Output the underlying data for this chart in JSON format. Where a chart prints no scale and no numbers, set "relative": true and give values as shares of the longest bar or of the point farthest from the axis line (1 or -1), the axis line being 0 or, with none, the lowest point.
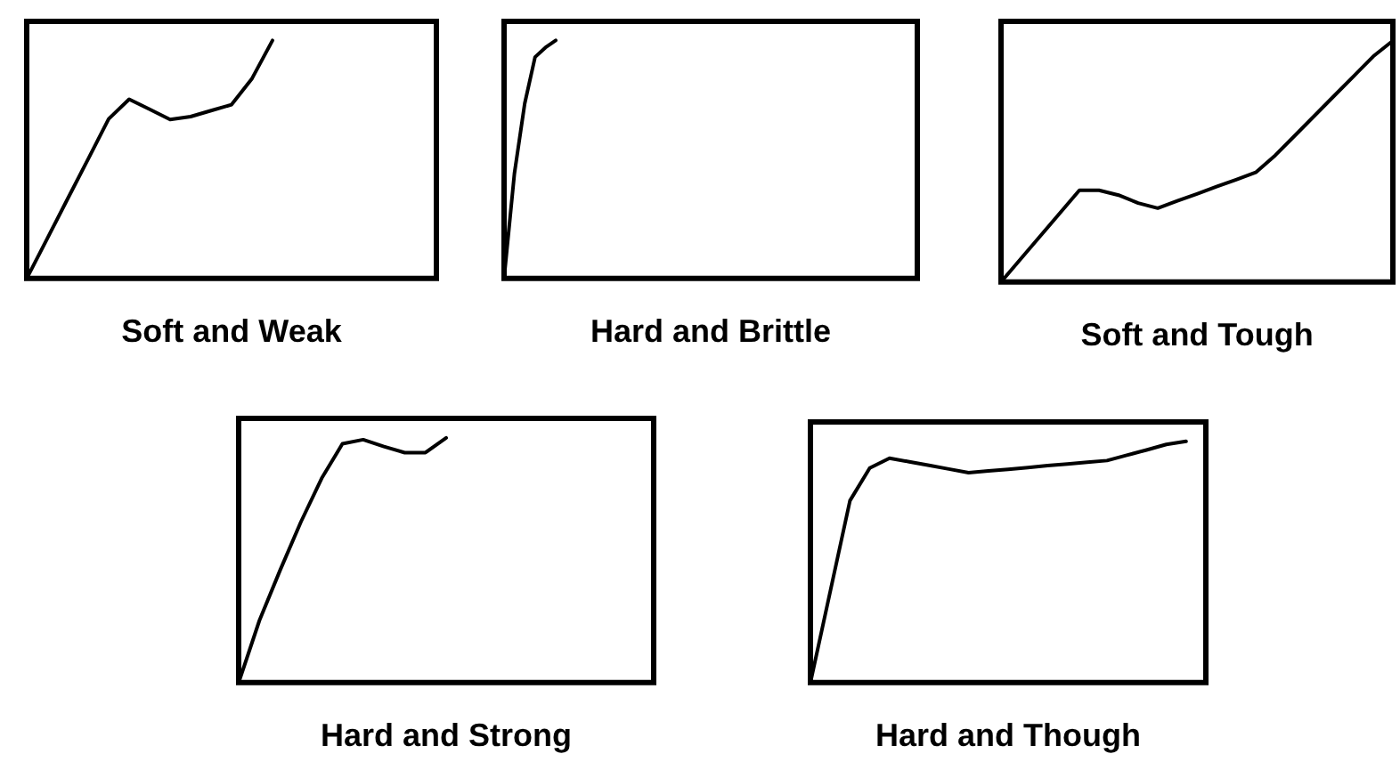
{
  "chart_data": [
    {
      "type": "line",
      "xlabel": "Soft and Weak",
      "relative": true,
      "categories": [
        null,
        null,
        null,
        null,
        null,
        null,
        null,
        null,
        null,
        null,
        null,
        null,
        null,
        null,
        null,
        null,
        null,
        null,
        null,
        null,
        null
      ],
      "series": [
        {
          "color": "#000000",
          "values": [
            0,
            0.167,
            0.335,
            0.502,
            0.67,
            0.753,
            0.711,
            0.668,
            0.68,
            0.705,
            0.73,
            0.84,
            1,
            null,
            null,
            null,
            null,
            null,
            null,
            null,
            null
          ]
        }
      ]
    },
    {
      "type": "line",
      "xlabel": "Hard and Brittle",
      "relative": true,
      "categories": [
        null,
        null,
        null,
        null,
        null,
        null,
        null,
        null,
        null,
        null,
        null,
        null,
        null,
        null,
        null,
        null,
        null,
        null,
        null,
        null,
        null,
        null,
        null,
        null,
        null,
        null,
        null,
        null,
        null,
        null,
        null,
        null,
        null,
        null,
        null,
        null,
        null,
        null,
        null,
        null,
        null
      ],
      "series": [
        {
          "color": "#000000",
          "values": [
            0,
            0.44,
            0.735,
            0.93,
            0.97,
            1,
            null,
            null,
            null,
            null,
            null,
            null,
            null,
            null,
            null,
            null,
            null,
            null,
            null,
            null,
            null,
            null,
            null,
            null,
            null,
            null,
            null,
            null,
            null,
            null,
            null,
            null,
            null,
            null,
            null,
            null,
            null,
            null,
            null,
            null,
            null
          ]
        }
      ]
    },
    {
      "type": "line",
      "xlabel": "Soft and Tough",
      "relative": true,
      "categories": [
        null,
        null,
        null,
        null,
        null,
        null,
        null,
        null,
        null,
        null,
        null,
        null,
        null,
        null,
        null,
        null,
        null,
        null,
        null,
        null,
        null
      ],
      "series": [
        {
          "color": "#000000",
          "values": [
            0,
            0.095,
            0.19,
            0.285,
            0.38,
            0.38,
            0.36,
            0.327,
            0.306,
            0.336,
            0.365,
            0.395,
            0.424,
            0.454,
            0.525,
            0.607,
            0.689,
            0.771,
            0.853,
            0.935,
            1
          ]
        }
      ]
    },
    {
      "type": "line",
      "xlabel": "Hard and Strong",
      "relative": true,
      "categories": [
        null,
        null,
        null,
        null,
        null,
        null,
        null,
        null,
        null,
        null,
        null,
        null,
        null,
        null,
        null,
        null,
        null,
        null,
        null,
        null,
        null
      ],
      "series": [
        {
          "color": "#000000",
          "values": [
            0,
            0.254,
            0.46,
            0.657,
            0.835,
            0.976,
            0.993,
            0.965,
            0.94,
            0.94,
            1,
            null,
            null,
            null,
            null,
            null,
            null,
            null,
            null,
            null,
            null
          ]
        }
      ]
    },
    {
      "type": "line",
      "xlabel": "Hard and Though",
      "relative": true,
      "categories": [
        null,
        null,
        null,
        null,
        null,
        null,
        null,
        null,
        null,
        null,
        null,
        null,
        null,
        null,
        null,
        null,
        null,
        null,
        null,
        null,
        null
      ],
      "series": [
        {
          "color": "#000000",
          "values": [
            0,
            0.377,
            0.754,
            0.889,
            0.93,
            0.915,
            0.9,
            0.885,
            0.87,
            0.877,
            0.884,
            0.891,
            0.899,
            0.906,
            0.913,
            0.92,
            0.942,
            0.964,
            0.987,
            1,
            null
          ]
        }
      ]
    }
  ]
}
